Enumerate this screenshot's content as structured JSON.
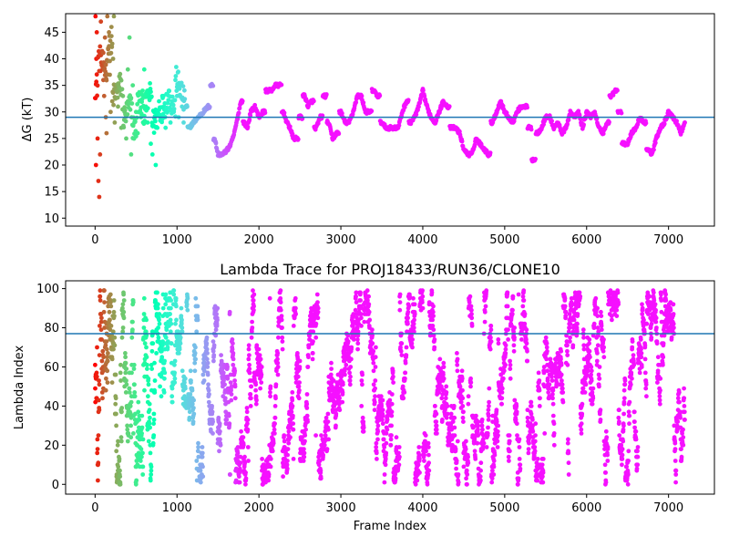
{
  "chart_data": [
    {
      "type": "scatter",
      "title": "",
      "xlabel": "",
      "ylabel": "ΔG (kT)",
      "xlim": [
        -360,
        7560
      ],
      "ylim": [
        8.5,
        48.5
      ],
      "xticks": [
        0,
        1000,
        2000,
        3000,
        4000,
        5000,
        6000,
        7000
      ],
      "yticks": [
        10,
        15,
        20,
        25,
        30,
        35,
        40,
        45
      ],
      "hline": 29.0,
      "hline_color": "#1f77b4",
      "colormap": "rainbow",
      "color_by": "frame_index",
      "grid": false,
      "trace": {
        "x": [
          0,
          60,
          120,
          180,
          240,
          300,
          360,
          420,
          480,
          540,
          600,
          660,
          720,
          780,
          840,
          900,
          960,
          1000,
          1050,
          1100,
          1150,
          1200,
          1260,
          1320,
          1380,
          1420,
          1460,
          1500,
          1560,
          1620,
          1660,
          1700,
          1740,
          1780,
          1820,
          1860,
          1900,
          1950,
          2000,
          2050,
          2100,
          2150,
          2200,
          2250,
          2300,
          2340,
          2380,
          2420,
          2460,
          2500,
          2560,
          2600,
          2640,
          2700,
          2750,
          2800,
          2850,
          2900,
          2950,
          3000,
          3050,
          3100,
          3150,
          3200,
          3250,
          3300,
          3350,
          3400,
          3450,
          3500,
          3550,
          3600,
          3650,
          3700,
          3750,
          3800,
          3850,
          3900,
          3950,
          4000,
          4050,
          4100,
          4150,
          4200,
          4250,
          4300,
          4350,
          4400,
          4450,
          4500,
          4550,
          4600,
          4650,
          4700,
          4750,
          4800,
          4850,
          4900,
          4950,
          5000,
          5050,
          5100,
          5150,
          5200,
          5250,
          5300,
          5350,
          5400,
          5450,
          5500,
          5550,
          5600,
          5650,
          5700,
          5750,
          5800,
          5850,
          5900,
          5950,
          6000,
          6050,
          6100,
          6150,
          6200,
          6250,
          6300,
          6350,
          6400,
          6450,
          6500,
          6550,
          6600,
          6650,
          6700,
          6750,
          6800,
          6850,
          6900,
          6950,
          7000,
          7050,
          7100,
          7150,
          7200
        ],
        "y": [
          35,
          40,
          38,
          42,
          33,
          35,
          29,
          31,
          27,
          32,
          30,
          33,
          28,
          30,
          31,
          33,
          31,
          36,
          34,
          31,
          27,
          28,
          29,
          30,
          31,
          35,
          25,
          22,
          22,
          23,
          24,
          26,
          29,
          32,
          28,
          27,
          30,
          31,
          29,
          30,
          34,
          34,
          35,
          35,
          30,
          28,
          27,
          25,
          25,
          29,
          33,
          31,
          32,
          27,
          29,
          33,
          28,
          25,
          26,
          30,
          28,
          28,
          30,
          33,
          33,
          30,
          30,
          34,
          33,
          28,
          27,
          27,
          27,
          27,
          30,
          32,
          28,
          29,
          31,
          34,
          31,
          29,
          28,
          30,
          32,
          31,
          27,
          27,
          26,
          23,
          22,
          22,
          25,
          24,
          23,
          22,
          28,
          30,
          32,
          30,
          29,
          28,
          30,
          31,
          31,
          27,
          21,
          26,
          27,
          29,
          29,
          27,
          28,
          26,
          27,
          30,
          29,
          30,
          27,
          30,
          29,
          30,
          27,
          26,
          28,
          33,
          34,
          30,
          24,
          24,
          26,
          27,
          29,
          28,
          23,
          22,
          25,
          27,
          28,
          30,
          29,
          28,
          26,
          28
        ]
      },
      "scatter_x": [
        5,
        10,
        15,
        20,
        30,
        40,
        50,
        60,
        70,
        80,
        90,
        100,
        110,
        120,
        130,
        140,
        150,
        160,
        170,
        180,
        190,
        200,
        210,
        220,
        230,
        240,
        260,
        280,
        300,
        320,
        340,
        360,
        380,
        400,
        420,
        440,
        460,
        480,
        500,
        520,
        540,
        560,
        580,
        600,
        620,
        640,
        660,
        680,
        700,
        720,
        740,
        760,
        780,
        800,
        820,
        840,
        860,
        880,
        900,
        920,
        940,
        960,
        980,
        1000,
        1020,
        1040,
        1060,
        1080
      ],
      "scatter_y": [
        48,
        20,
        40,
        45,
        25,
        17,
        14,
        22,
        47,
        41,
        38,
        36,
        33,
        44,
        29,
        26,
        48,
        42,
        45,
        37,
        30,
        46,
        32,
        40,
        48,
        28,
        35,
        31,
        34,
        27,
        33,
        30,
        25,
        38,
        44,
        22,
        35,
        28,
        30,
        26,
        32,
        29,
        34,
        38,
        31,
        28,
        33,
        24,
        22,
        30,
        20,
        27,
        32,
        29,
        33,
        31,
        27,
        30,
        34,
        28,
        32,
        30,
        36,
        33,
        29,
        35,
        31,
        28
      ]
    },
    {
      "type": "scatter",
      "title": "Lambda Trace for PROJ18433/RUN36/CLONE10",
      "xlabel": "Frame Index",
      "ylabel": "Lambda Index",
      "xlim": [
        -360,
        7560
      ],
      "ylim": [
        -5,
        104
      ],
      "xticks": [
        0,
        1000,
        2000,
        3000,
        4000,
        5000,
        6000,
        7000
      ],
      "yticks": [
        0,
        20,
        40,
        60,
        80,
        100
      ],
      "hline": 77,
      "hline_color": "#1f77b4",
      "colormap": "rainbow",
      "color_by": "frame_index",
      "grid": false,
      "x_range": [
        0,
        7200
      ],
      "y_range": [
        0,
        99
      ],
      "n_points": 7200
    }
  ]
}
